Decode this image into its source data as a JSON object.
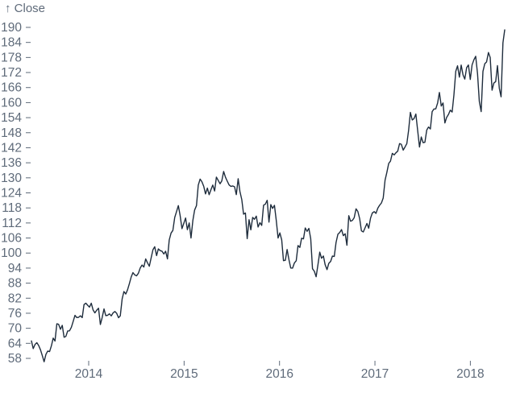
{
  "page": {
    "background": "#ffffff"
  },
  "chart_data": {
    "type": "line",
    "title": "",
    "xlabel": "",
    "ylabel": "Close",
    "ylabel_display": "↑ Close",
    "x_ticks": [
      2014,
      2015,
      2016,
      2017,
      2018
    ],
    "y_ticks": [
      58,
      64,
      70,
      76,
      82,
      88,
      94,
      100,
      106,
      112,
      118,
      124,
      130,
      136,
      142,
      148,
      154,
      160,
      166,
      172,
      178,
      184,
      190
    ],
    "x_domain": [
      2013.4,
      2018.36
    ],
    "ylim": [
      55.5,
      193
    ],
    "grid": false,
    "legend_position": "none",
    "colors": {
      "line": "#1e2c3c",
      "axis_text": "#5f6b7a",
      "tick": "#5f6b7a",
      "background": "#ffffff"
    },
    "series": [
      {
        "name": "Close",
        "sampling": "weekly, evenly spaced across x_domain",
        "values": [
          64.96,
          61.9,
          63.59,
          64.25,
          63.12,
          61.44,
          59.07,
          56.65,
          59.63,
          60.93,
          60.71,
          62.94,
          66.08,
          64.92,
          71.77,
          71.57,
          69.6,
          71.17,
          66.41,
          66.77,
          68.96,
          69.0,
          70.4,
          72.69,
          75.14,
          74.29,
          74.37,
          74.99,
          74.26,
          79.44,
          80.0,
          79.2,
          78.43,
          80.01,
          77.28,
          76.13,
          77.24,
          78.01,
          71.51,
          74.24,
          77.71,
          75.04,
          75.18,
          75.77,
          74.96,
          76.12,
          76.7,
          75.97,
          74.23,
          74.99,
          81.71,
          84.65,
          83.65,
          85.36,
          87.73,
          90.43,
          92.22,
          91.28,
          90.91,
          91.98,
          94.03,
          95.22,
          94.43,
          97.67,
          96.13,
          94.74,
          97.98,
          101.32,
          102.5,
          98.97,
          101.66,
          100.96,
          100.75,
          99.62,
          100.73,
          97.67,
          105.22,
          108.0,
          109.01,
          114.18,
          116.47,
          118.93,
          115.0,
          109.73,
          111.78,
          113.99,
          109.33,
          112.01,
          105.99,
          112.98,
          117.16,
          118.93,
          127.08,
          129.5,
          128.46,
          126.6,
          123.59,
          125.9,
          123.25,
          125.32,
          127.1,
          124.75,
          130.28,
          128.95,
          127.62,
          128.77,
          132.54,
          130.28,
          128.65,
          127.17,
          126.6,
          126.75,
          126.44,
          123.28,
          129.62,
          124.5,
          121.3,
          115.52,
          115.96,
          105.76,
          113.29,
          109.27,
          114.21,
          113.45,
          114.71,
          110.38,
          112.12,
          111.04,
          119.08,
          119.5,
          121.06,
          112.34,
          119.3,
          117.81,
          119.03,
          113.18,
          106.03,
          108.03,
          105.26,
          96.96,
          97.13,
          101.42,
          97.34,
          94.02,
          93.99,
          96.04,
          96.91,
          103.01,
          102.26,
          105.92,
          105.67,
          109.99,
          108.66,
          109.85,
          105.68,
          93.74,
          92.72,
          90.52,
          95.22,
          100.35,
          97.92,
          98.83,
          95.33,
          93.4,
          95.89,
          96.68,
          98.78,
          98.66,
          104.21,
          107.48,
          108.18,
          109.36,
          106.94,
          107.73,
          103.13,
          114.92,
          112.71,
          113.05,
          114.06,
          117.63,
          116.6,
          113.72,
          108.84,
          108.43,
          110.06,
          111.79,
          109.9,
          113.95,
          115.97,
          116.52,
          115.82,
          117.91,
          119.04,
          120.0,
          121.95,
          129.08,
          132.12,
          135.72,
          136.66,
          139.78,
          139.14,
          139.99,
          140.64,
          143.66,
          143.34,
          141.05,
          142.27,
          143.65,
          148.96,
          156.1,
          153.06,
          153.61,
          155.45,
          148.98,
          142.27,
          146.28,
          144.02,
          144.18,
          149.04,
          150.27,
          149.5,
          156.39,
          157.48,
          157.5,
          159.86,
          164.05,
          158.63,
          159.88,
          151.89,
          154.12,
          155.3,
          156.99,
          156.25,
          163.05,
          172.5,
          174.67,
          170.15,
          174.97,
          171.05,
          169.37,
          173.97,
          175.01,
          169.23,
          175.0,
          177.09,
          178.46,
          171.51,
          160.5,
          156.41,
          172.43,
          175.5,
          176.21,
          179.98,
          178.02,
          164.94,
          167.78,
          168.38,
          174.73,
          165.72,
          162.32,
          183.83,
          189.0
        ]
      }
    ]
  }
}
